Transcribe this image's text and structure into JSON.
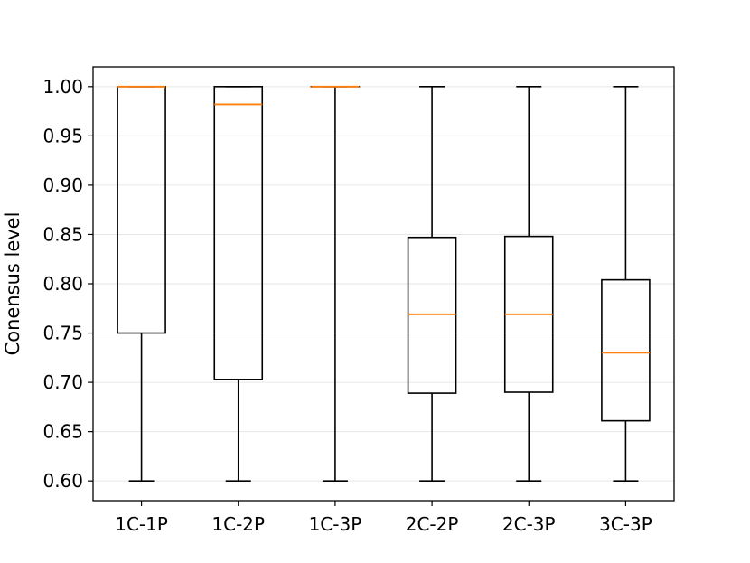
{
  "chart_data": {
    "type": "box",
    "title": "",
    "xlabel": "",
    "ylabel": "Conensus level",
    "ylim": [
      0.58,
      1.02
    ],
    "yticks": [
      "0.60",
      "0.65",
      "0.70",
      "0.75",
      "0.80",
      "0.85",
      "0.90",
      "0.95",
      "1.00"
    ],
    "grid": "horizontal",
    "categories": [
      "1C-1P",
      "1C-2P",
      "1C-3P",
      "2C-2P",
      "2C-3P",
      "3C-3P"
    ],
    "boxes": [
      {
        "whisker_low": 0.6,
        "q1": 0.75,
        "median": 1.0,
        "q3": 1.0,
        "whisker_high": 1.0
      },
      {
        "whisker_low": 0.6,
        "q1": 0.703,
        "median": 0.982,
        "q3": 1.0,
        "whisker_high": 1.0
      },
      {
        "whisker_low": 0.6,
        "q1": 1.0,
        "median": 1.0,
        "q3": 1.0,
        "whisker_high": 1.0
      },
      {
        "whisker_low": 0.6,
        "q1": 0.689,
        "median": 0.769,
        "q3": 0.847,
        "whisker_high": 1.0
      },
      {
        "whisker_low": 0.6,
        "q1": 0.69,
        "median": 0.769,
        "q3": 0.848,
        "whisker_high": 1.0
      },
      {
        "whisker_low": 0.6,
        "q1": 0.661,
        "median": 0.73,
        "q3": 0.804,
        "whisker_high": 1.0
      }
    ],
    "colors": {
      "box": "#000000",
      "median": "#ff7f0e",
      "grid": "#e6e6e6"
    }
  }
}
